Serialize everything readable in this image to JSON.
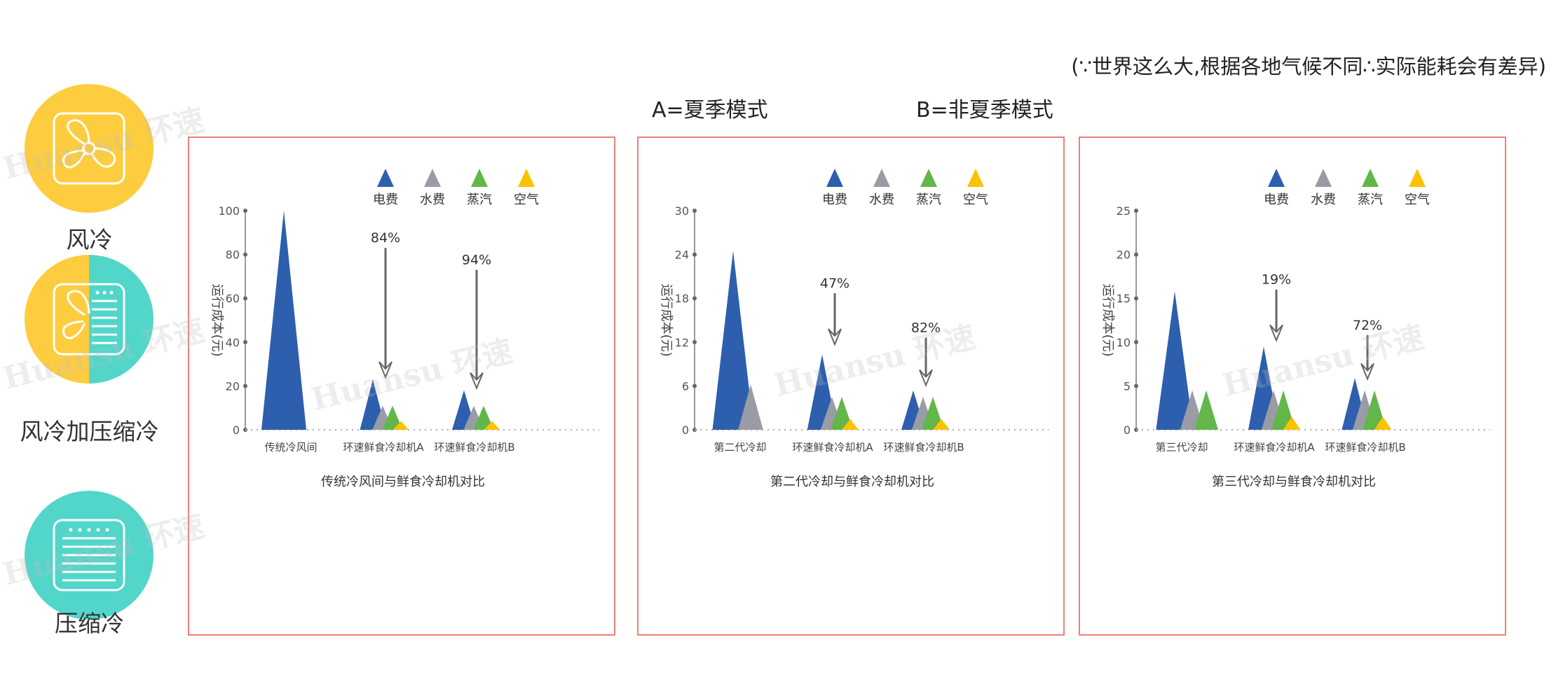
{
  "header": {
    "note": "(∵世界这么大,根据各地气候不同∴实际能耗会有差异)",
    "mode_a": "A=夏季模式",
    "mode_b": "B=非夏季模式"
  },
  "sidebar": {
    "items": [
      {
        "label": "风冷",
        "icon": "fan-icon",
        "color": "#FDCD3F"
      },
      {
        "label": "风冷加压缩冷",
        "icon": "fan-compressor-icon",
        "color": "#FDCD3F",
        "color2": "#52D6C9"
      },
      {
        "label": "压缩冷",
        "icon": "compressor-icon",
        "color": "#52D6C9"
      }
    ]
  },
  "watermark": "Huansu 环速",
  "colors": {
    "border": "#EE7F77",
    "axis": "#999999"
  },
  "chart_data": [
    {
      "type": "area",
      "title": "传统冷风间与鲜食冷却机对比",
      "ylabel": "运行成本(元)",
      "ylim": [
        0,
        100
      ],
      "yticks": [
        0,
        20,
        40,
        60,
        80,
        100
      ],
      "categories": [
        "传统冷风间",
        "环速鲜食冷却机A",
        "环速鲜食冷却机B"
      ],
      "legend_placement": "top-right",
      "series": [
        {
          "name": "电费",
          "color": "#2E5FAE",
          "values": [
            100,
            23,
            18
          ]
        },
        {
          "name": "水费",
          "color": "#9A9CA5",
          "values": [
            0,
            11,
            11
          ]
        },
        {
          "name": "蒸汽",
          "color": "#62B64A",
          "values": [
            0,
            11,
            11
          ]
        },
        {
          "name": "空气",
          "color": "#FBC200",
          "values": [
            0,
            4,
            4
          ]
        }
      ],
      "annotations": [
        {
          "category": 1,
          "label": "84%",
          "from": 83,
          "to": 24
        },
        {
          "category": 2,
          "label": "94%",
          "from": 73,
          "to": 19
        }
      ]
    },
    {
      "type": "area",
      "title": "第二代冷却与鲜食冷却机对比",
      "ylabel": "运行成本(元)",
      "ylim": [
        0,
        30
      ],
      "yticks": [
        0,
        6,
        12,
        18,
        24,
        30
      ],
      "categories": [
        "第二代冷却",
        "环速鲜食冷却机A",
        "环速鲜食冷却机B"
      ],
      "legend_placement": "top-right",
      "series": [
        {
          "name": "电费",
          "color": "#2E5FAE",
          "values": [
            24.5,
            10.3,
            5.4
          ]
        },
        {
          "name": "水费",
          "color": "#9A9CA5",
          "values": [
            6.2,
            4.5,
            4.5
          ]
        },
        {
          "name": "蒸汽",
          "color": "#62B64A",
          "values": [
            0,
            4.5,
            4.5
          ]
        },
        {
          "name": "空气",
          "color": "#FBC200",
          "values": [
            0,
            1.5,
            1.5
          ]
        }
      ],
      "annotations": [
        {
          "category": 1,
          "label": "47%",
          "from": 18.7,
          "to": 11.7
        },
        {
          "category": 2,
          "label": "82%",
          "from": 12.6,
          "to": 6.1
        }
      ]
    },
    {
      "type": "area",
      "title": "第三代冷却与鲜食冷却机对比",
      "ylabel": "运行成本(元)",
      "ylim": [
        0,
        25
      ],
      "yticks": [
        0,
        5,
        10,
        15,
        20,
        25
      ],
      "categories": [
        "第三代冷却",
        "环速鲜食冷却机A",
        "环速鲜食冷却机B"
      ],
      "legend_placement": "top-right",
      "series": [
        {
          "name": "电费",
          "color": "#2E5FAE",
          "values": [
            15.8,
            9.5,
            5.9
          ]
        },
        {
          "name": "水费",
          "color": "#9A9CA5",
          "values": [
            4.5,
            4.5,
            4.5
          ]
        },
        {
          "name": "蒸汽",
          "color": "#62B64A",
          "values": [
            4.5,
            4.5,
            4.5
          ]
        },
        {
          "name": "空气",
          "color": "#FBC200",
          "values": [
            0,
            1.5,
            1.5
          ]
        }
      ],
      "annotations": [
        {
          "category": 1,
          "label": "19%",
          "from": 16,
          "to": 10.2
        },
        {
          "category": 2,
          "label": "72%",
          "from": 10.8,
          "to": 5.8
        }
      ]
    }
  ]
}
